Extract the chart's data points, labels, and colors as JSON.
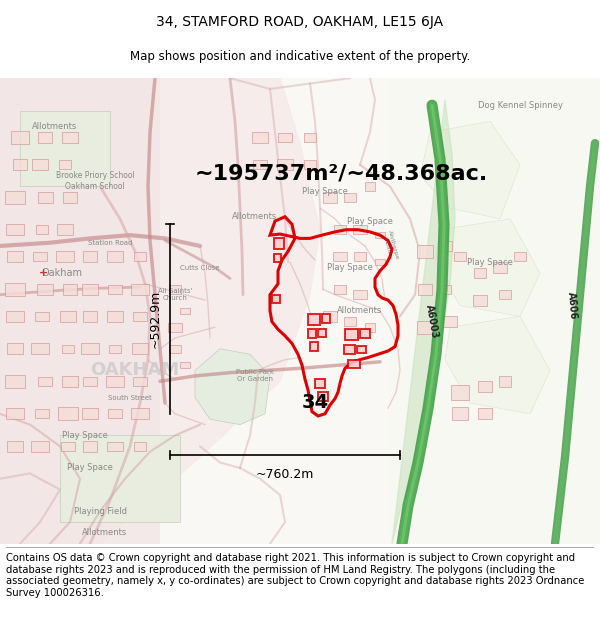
{
  "title_line1": "34, STAMFORD ROAD, OAKHAM, LE15 6JA",
  "title_line2": "Map shows position and indicative extent of the property.",
  "area_text": "~195737m²/~48.368ac.",
  "width_text": "~760.2m",
  "height_text": "~592.9m",
  "property_number": "34",
  "copyright_text": "Contains OS data © Crown copyright and database right 2021. This information is subject to Crown copyright and database rights 2023 and is reproduced with the permission of HM Land Registry. The polygons (including the associated geometry, namely x, y co-ordinates) are subject to Crown copyright and database rights 2023 Ordnance Survey 100026316.",
  "map_bg": "#ffffff",
  "urban_fill": "#f5e8e8",
  "rural_fill": "#f5f5f0",
  "green_fill": "#e8f0e0",
  "road_red": "#d4a0a0",
  "road_red_dark": "#c08080",
  "boundary_red": "#dd0000",
  "green_road": "#5aaa60",
  "green_road_light": "#8acc88",
  "dim_color": "#000000",
  "text_gray": "#888888",
  "text_dark": "#333333",
  "title_fs": 10,
  "sub_fs": 8.5,
  "area_fs": 16,
  "dim_fs": 9,
  "label_fs": 6,
  "label_fs2": 7,
  "copy_fs": 7.2,
  "fig_w": 6.0,
  "fig_h": 6.25
}
